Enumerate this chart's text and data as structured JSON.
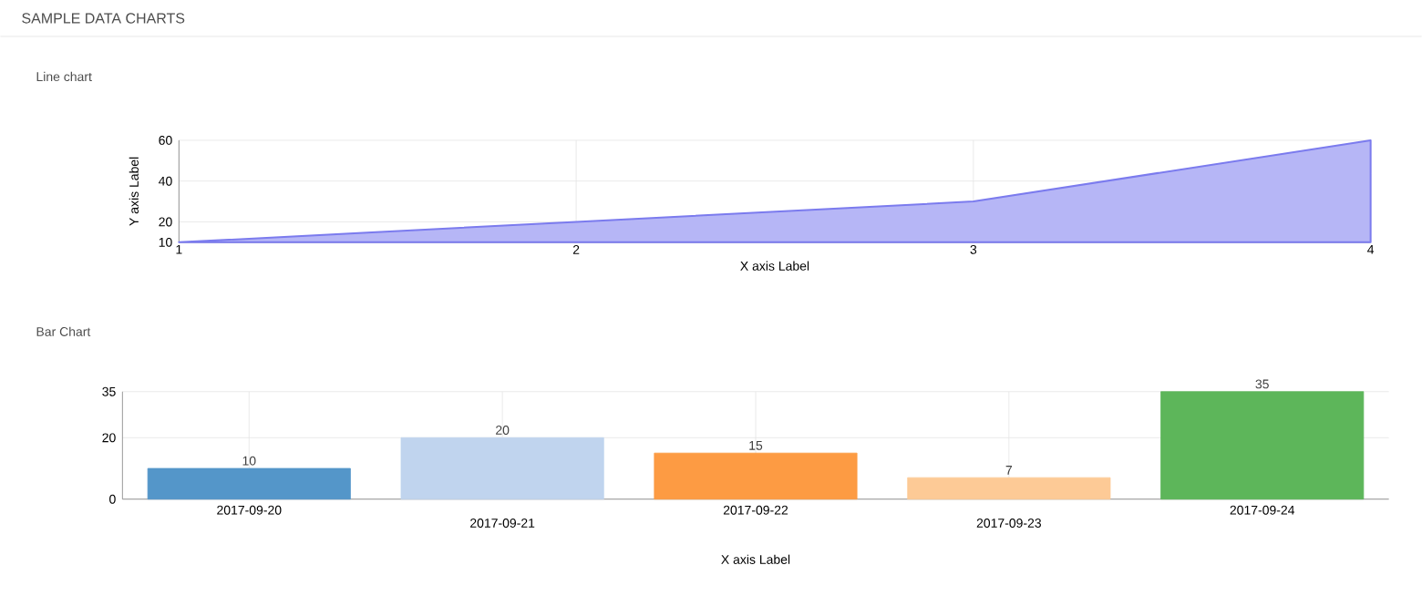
{
  "chart_data": [
    {
      "type": "area",
      "title": "SAMPLE DATA CHARTS",
      "subtitle": "Line chart",
      "xlabel": "X axis Label",
      "ylabel": "Y axis Label",
      "x": [
        1,
        2,
        3,
        4
      ],
      "values": [
        10,
        20,
        30,
        60
      ],
      "color": "#7b7bee",
      "xlim": [
        1,
        4
      ],
      "xticks": [
        1,
        2,
        3,
        4
      ],
      "ylim": [
        10,
        60
      ],
      "yticks": [
        10,
        20,
        40,
        60
      ],
      "grid": true
    },
    {
      "type": "bar",
      "subtitle": "Bar Chart",
      "xlabel": "X axis Label",
      "categories": [
        "2017-09-20",
        "2017-09-21",
        "2017-09-22",
        "2017-09-23",
        "2017-09-24"
      ],
      "values": [
        10,
        20,
        15,
        7,
        35
      ],
      "colors": [
        "#5496c9",
        "#c0d4ee",
        "#fd9b43",
        "#fdca96",
        "#5db65a"
      ],
      "ylim": [
        0,
        35
      ],
      "yticks": [
        0,
        20,
        35
      ],
      "grid": true,
      "data_labels": true
    }
  ]
}
